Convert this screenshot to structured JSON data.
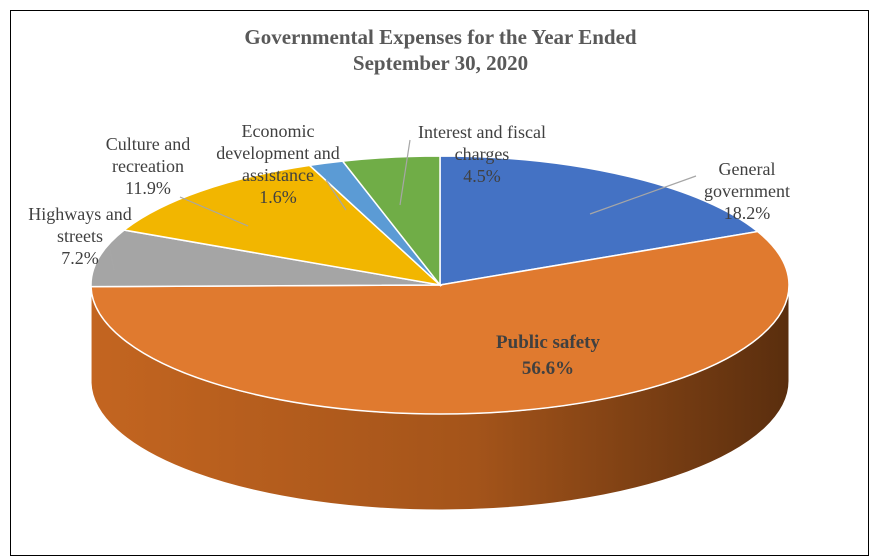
{
  "chart_data": {
    "type": "pie",
    "title_line1": "Governmental Expenses for the Year Ended",
    "title_line2": "September 30, 2020",
    "slices": [
      {
        "label_lines": [
          "General",
          "government"
        ],
        "percent_label": "18.2%",
        "value": 18.2,
        "color": "#4472C4",
        "side": "#2E4F8A"
      },
      {
        "label_lines": [
          "Public safety"
        ],
        "percent_label": "56.6%",
        "value": 56.6,
        "color": "#E07A2F",
        "side": "#9A4E19"
      },
      {
        "label_lines": [
          "Highways and",
          "streets"
        ],
        "percent_label": "7.2%",
        "value": 7.2,
        "color": "#A5A5A5",
        "side": "#6E6E6E"
      },
      {
        "label_lines": [
          "Culture and",
          "recreation"
        ],
        "percent_label": "11.9%",
        "value": 11.9,
        "color": "#F2B600",
        "side": "#A37B00"
      },
      {
        "label_lines": [
          "Economic",
          "development and",
          "assistance"
        ],
        "percent_label": "1.6%",
        "value": 1.6,
        "color": "#5B9BD5",
        "side": "#3A6A95"
      },
      {
        "label_lines": [
          "Interest and fiscal",
          "charges"
        ],
        "percent_label": "4.5%",
        "value": 4.5,
        "color": "#70AD47",
        "side": "#4B7A2E"
      }
    ]
  }
}
